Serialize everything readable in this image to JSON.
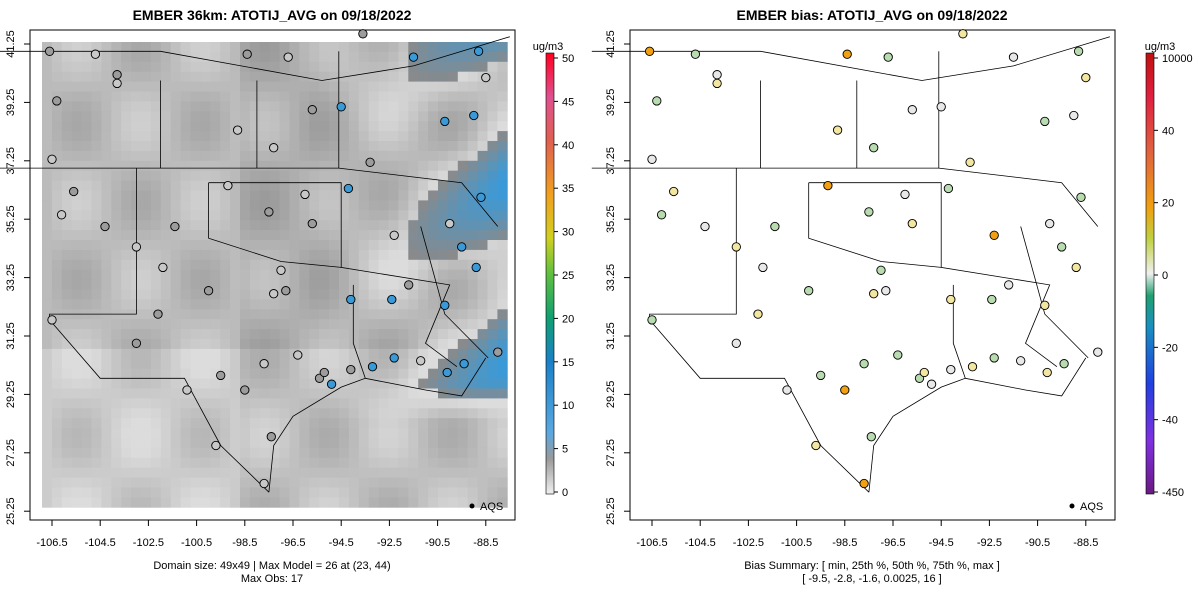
{
  "left_panel": {
    "title": "EMBER 36km: ATOTIJ_AVG on 09/18/2022",
    "footer_line1": "Domain size: 49x49 | Max Model = 26 at (23, 44)",
    "footer_line2": "Max Obs: 17",
    "colorbar_unit": "ug/m3",
    "colorbar_ticks": [
      "50",
      "45",
      "40",
      "35",
      "30",
      "25",
      "20",
      "15",
      "10",
      "5",
      "0"
    ],
    "legend_label": "AQS"
  },
  "right_panel": {
    "title": "EMBER bias: ATOTIJ_AVG on 09/18/2022",
    "footer_line1": "Bias Summary: [ min, 25th %, 50th %, 75th %, max ]",
    "footer_line2": "[ -9.5,   -2.8,   -1.6,   0.0025,   16 ]",
    "colorbar_unit": "ug/m3",
    "colorbar_ticks": [
      "10000",
      "40",
      "20",
      "0",
      "-20",
      "-40",
      "-450"
    ],
    "legend_label": "AQS"
  },
  "x_ticks": [
    "-106.5",
    "-104.5",
    "-102.5",
    "-100.5",
    "-98.5",
    "-96.5",
    "-94.5",
    "-92.5",
    "-90.5",
    "-88.5"
  ],
  "y_ticks": [
    "41.25",
    "39.25",
    "37.25",
    "35.25",
    "33.25",
    "31.25",
    "29.25",
    "27.25",
    "25.25"
  ],
  "colors": {
    "model_high": "#3a9ad8",
    "model_mid": "#8a8a8a",
    "model_low": "#dcdcdc",
    "bias_positive": "#f0a010",
    "bias_negative": "#3aaa6a"
  }
}
